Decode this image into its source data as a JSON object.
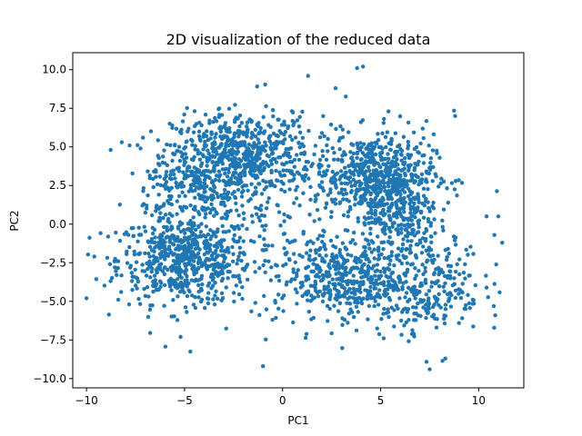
{
  "chart_data": {
    "type": "scatter",
    "title": "2D visualization of the reduced data",
    "xlabel": "PC1",
    "ylabel": "PC2",
    "xlim": [
      -10.7,
      12.3
    ],
    "ylim": [
      -10.6,
      11.1
    ],
    "xticks": [
      -10,
      -5,
      0,
      5,
      10
    ],
    "xtick_labels": [
      "−10",
      "−5",
      "0",
      "5",
      "10"
    ],
    "yticks": [
      -10,
      -7.5,
      -5,
      -2.5,
      0,
      2.5,
      5,
      7.5,
      10
    ],
    "ytick_labels": [
      "−10.0",
      "−7.5",
      "−5.0",
      "−2.5",
      "0.0",
      "2.5",
      "5.0",
      "7.5",
      "10.0"
    ],
    "grid": false,
    "point_color": "#1f77b4",
    "clusters": [
      {
        "center": [
          -5.0,
          -2.3
        ],
        "spread": [
          1.7,
          1.4
        ],
        "count": 620
      },
      {
        "center": [
          -2.0,
          4.6
        ],
        "spread": [
          1.8,
          1.3
        ],
        "count": 540
      },
      {
        "center": [
          4.7,
          3.2
        ],
        "spread": [
          1.5,
          1.3
        ],
        "count": 520
      },
      {
        "center": [
          6.0,
          0.6
        ],
        "spread": [
          1.0,
          1.7
        ],
        "count": 260
      },
      {
        "center": [
          2.8,
          -3.5
        ],
        "spread": [
          1.5,
          1.2
        ],
        "count": 360
      },
      {
        "center": [
          7.2,
          -4.0
        ],
        "spread": [
          1.5,
          1.6
        ],
        "count": 280
      },
      {
        "center": [
          -4.3,
          2.5
        ],
        "spread": [
          1.4,
          1.4
        ],
        "count": 260
      },
      {
        "center": [
          0.5,
          0.0
        ],
        "spread": [
          3.5,
          3.5
        ],
        "count": 260
      }
    ],
    "notable_points": [
      {
        "x": -10.0,
        "y": -4.8
      },
      {
        "x": -9.6,
        "y": -2.1
      },
      {
        "x": -8.2,
        "y": 5.3
      },
      {
        "x": -7.8,
        "y": 5.1
      },
      {
        "x": -1.0,
        "y": -9.2
      },
      {
        "x": 1.3,
        "y": 9.6
      },
      {
        "x": 3.8,
        "y": 10.1
      },
      {
        "x": 4.1,
        "y": 10.2
      },
      {
        "x": 7.5,
        "y": -9.4
      },
      {
        "x": 8.3,
        "y": -8.7
      },
      {
        "x": 10.4,
        "y": 0.5
      },
      {
        "x": 11.0,
        "y": 0.5
      },
      {
        "x": 11.2,
        "y": -1.2
      },
      {
        "x": 10.8,
        "y": -0.7
      },
      {
        "x": 8.8,
        "y": 7.0
      },
      {
        "x": 5.4,
        "y": 7.3
      },
      {
        "x": -5.2,
        "y": -7.3
      },
      {
        "x": 2.7,
        "y": 8.8
      },
      {
        "x": 9.3,
        "y": -2.6
      },
      {
        "x": 8.5,
        "y": -4.8
      }
    ]
  }
}
